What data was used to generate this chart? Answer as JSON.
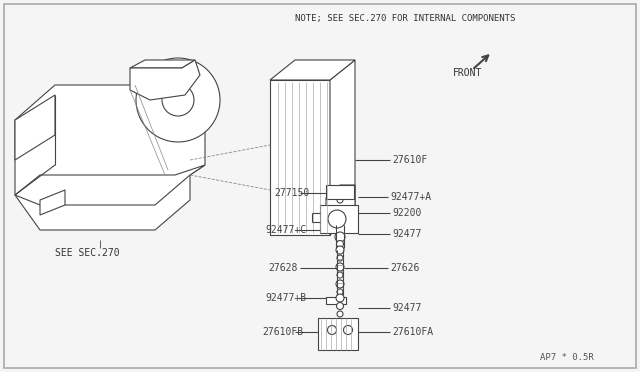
{
  "bg_color": "#f5f5f5",
  "line_color": "#444444",
  "text_color": "#444444",
  "title_note": "NOTE; SEE SEC.270 FOR INTERNAL COMPONENTS",
  "front_label": "FRONT",
  "see_sec_label": "SEE SEC.270",
  "part_code": "AP7 * 0.5R",
  "label_27610F": "27610F",
  "label_277150": "277150",
  "label_92477A": "92477+A",
  "label_92200": "92200",
  "label_92477C": "92477+C",
  "label_92477": "92477",
  "label_27628": "27628",
  "label_27626": "27626",
  "label_92477B": "92477+B",
  "label_92477_2": "92477",
  "label_27610FB": "27610FB",
  "label_27610FA": "27610FA"
}
